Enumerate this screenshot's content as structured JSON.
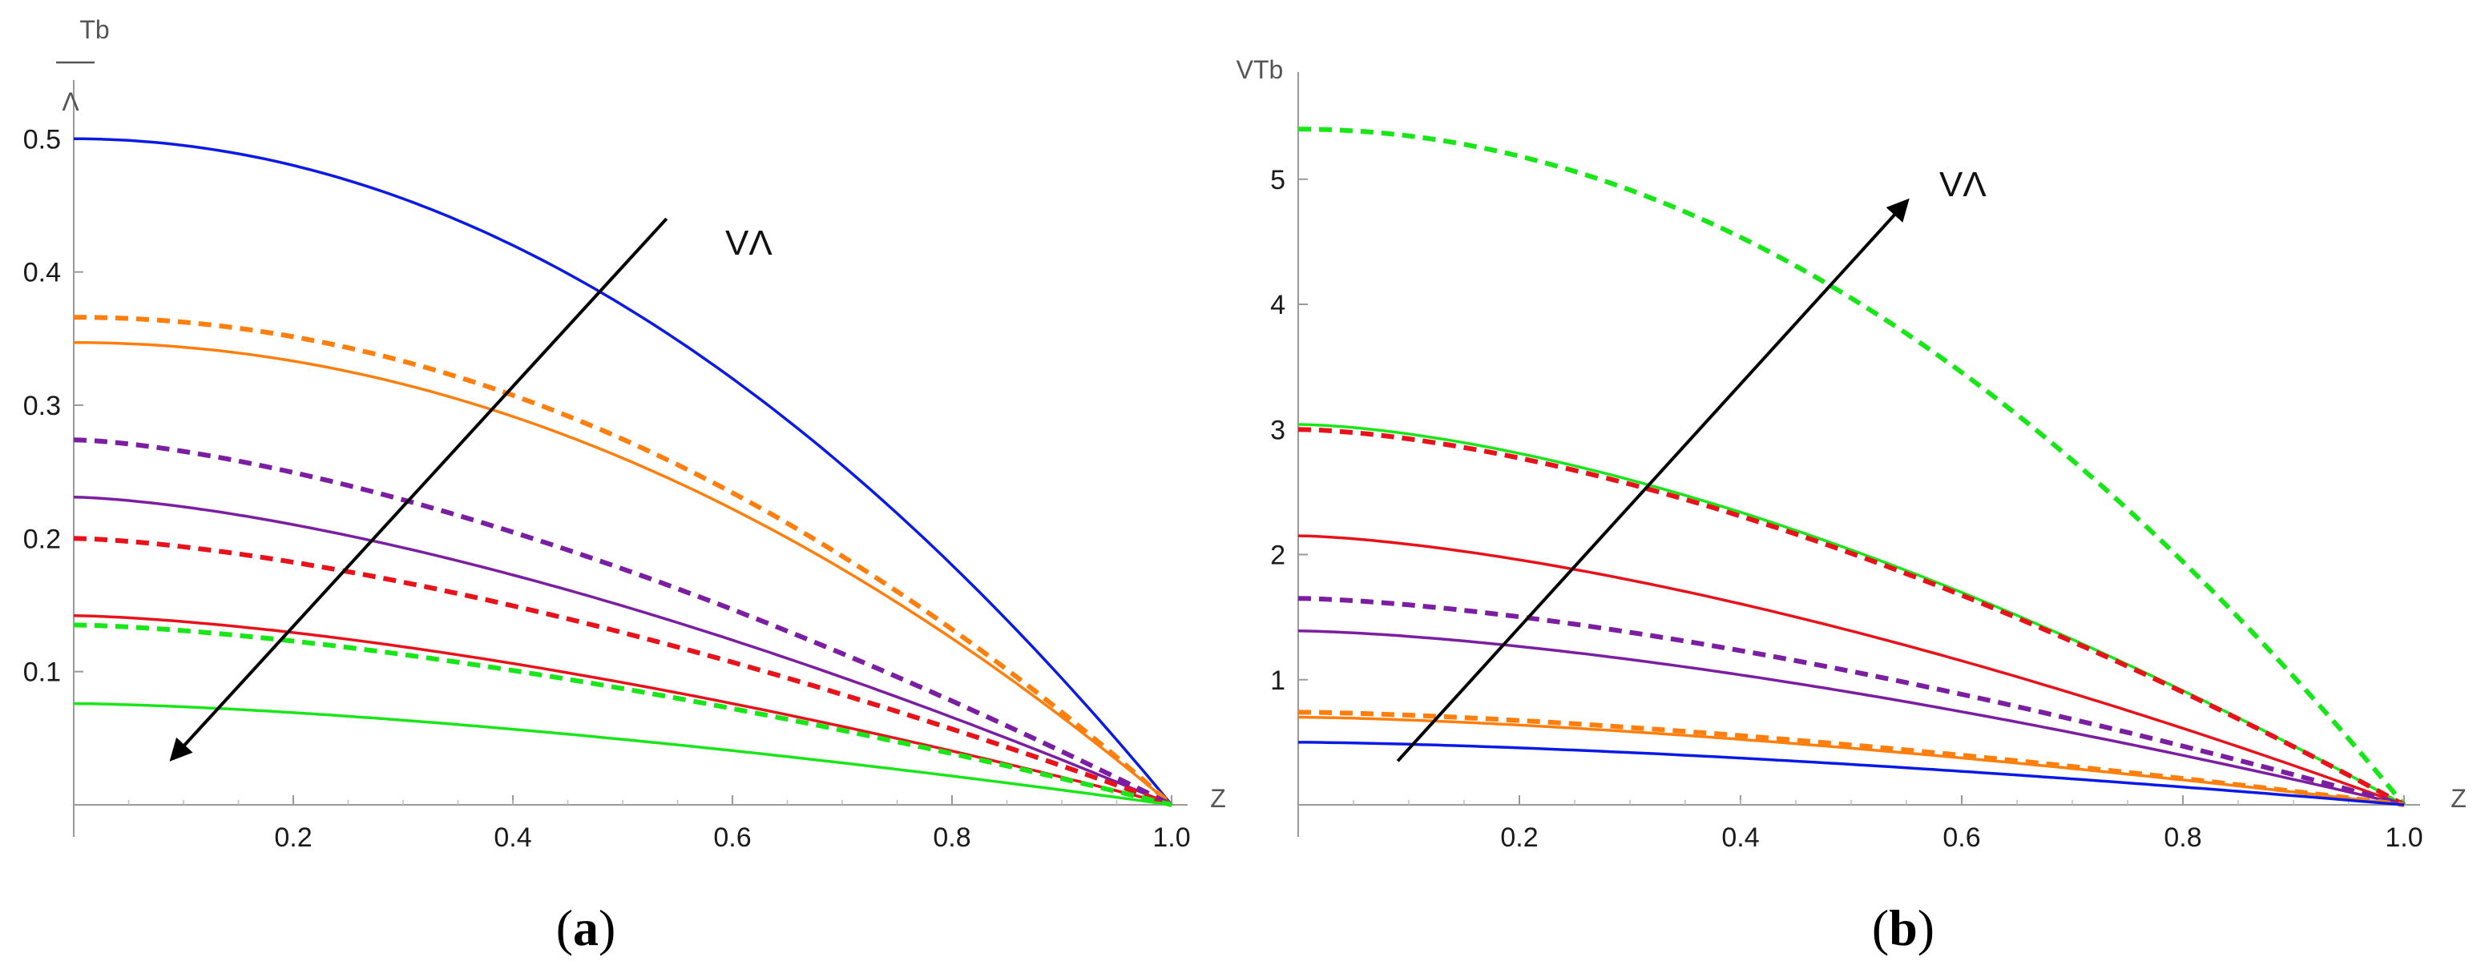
{
  "chart_data": [
    {
      "type": "line",
      "panel_label_open": "(",
      "panel_label_letter": "a",
      "panel_label_close": ")",
      "ylabel_top": "Tb",
      "ylabel_bottom": "Λ",
      "xlabel": "Z",
      "xlim": [
        0,
        1.0
      ],
      "ylim": [
        0,
        0.52
      ],
      "xticks": [
        0.2,
        0.4,
        0.6,
        0.8,
        1.0
      ],
      "xtick_labels": [
        "0.2",
        "0.4",
        "0.6",
        "0.8",
        "1.0"
      ],
      "yticks": [
        0.1,
        0.2,
        0.3,
        0.4,
        0.5
      ],
      "ytick_labels": [
        "0.1",
        "0.2",
        "0.3",
        "0.4",
        "0.5"
      ],
      "annotation": {
        "text": "VΛ",
        "direction": "decreasing",
        "from": [
          0.54,
          0.44
        ],
        "to": [
          0.09,
          0.035
        ]
      },
      "series": [
        {
          "name": "blue-solid",
          "color": "#0a1ae6",
          "dash": "solid",
          "y0": 0.5,
          "shape": 2.0
        },
        {
          "name": "orange-dashed",
          "color": "#ff7f0e",
          "dash": "dashed",
          "y0": 0.366,
          "shape": 2.0
        },
        {
          "name": "orange-solid",
          "color": "#ff7f0e",
          "dash": "solid",
          "y0": 0.347,
          "shape": 2.0
        },
        {
          "name": "purple-dashed",
          "color": "#7b1ea2",
          "dash": "dashed",
          "y0": 0.274,
          "shape": 1.5
        },
        {
          "name": "purple-solid",
          "color": "#7b1ea2",
          "dash": "solid",
          "y0": 0.231,
          "shape": 1.5
        },
        {
          "name": "red-dashed",
          "color": "#e8121b",
          "dash": "dashed",
          "y0": 0.2,
          "shape": 1.5
        },
        {
          "name": "red-solid",
          "color": "#e8121b",
          "dash": "solid",
          "y0": 0.142,
          "shape": 1.5
        },
        {
          "name": "green-dashed",
          "color": "#19e619",
          "dash": "dashed",
          "y0": 0.135,
          "shape": 1.5
        },
        {
          "name": "green-solid",
          "color": "#19e619",
          "dash": "solid",
          "y0": 0.076,
          "shape": 1.5
        }
      ]
    },
    {
      "type": "line",
      "panel_label_open": "(",
      "panel_label_letter": "b",
      "panel_label_close": ")",
      "ylabel_top": "VTb",
      "ylabel_bottom": "",
      "xlabel": "Z",
      "xlim": [
        0,
        1.0
      ],
      "ylim": [
        0,
        5.6
      ],
      "xticks": [
        0.2,
        0.4,
        0.6,
        0.8,
        1.0
      ],
      "xtick_labels": [
        "0.2",
        "0.4",
        "0.6",
        "0.8",
        "1.0"
      ],
      "yticks": [
        1,
        2,
        3,
        4,
        5
      ],
      "ytick_labels": [
        "1",
        "2",
        "3",
        "4",
        "5"
      ],
      "annotation": {
        "text": "VΛ",
        "direction": "increasing",
        "from": [
          0.09,
          0.35
        ],
        "to": [
          0.55,
          4.82
        ]
      },
      "series": [
        {
          "name": "green-dashed",
          "color": "#19e619",
          "dash": "dashed",
          "y0": 5.4,
          "shape": 2.0
        },
        {
          "name": "green-solid",
          "color": "#19e619",
          "dash": "solid",
          "y0": 3.04,
          "shape": 1.6
        },
        {
          "name": "red-dashed",
          "color": "#e8121b",
          "dash": "dashed",
          "y0": 3.0,
          "shape": 1.6
        },
        {
          "name": "red-solid",
          "color": "#e8121b",
          "dash": "solid",
          "y0": 2.15,
          "shape": 1.5
        },
        {
          "name": "purple-dashed",
          "color": "#7b1ea2",
          "dash": "dashed",
          "y0": 1.65,
          "shape": 1.5
        },
        {
          "name": "purple-solid",
          "color": "#7b1ea2",
          "dash": "solid",
          "y0": 1.39,
          "shape": 1.5
        },
        {
          "name": "orange-dashed",
          "color": "#ff7f0e",
          "dash": "dashed",
          "y0": 0.74,
          "shape": 1.5
        },
        {
          "name": "orange-solid",
          "color": "#ff7f0e",
          "dash": "solid",
          "y0": 0.7,
          "shape": 1.5
        },
        {
          "name": "blue-solid",
          "color": "#0a1ae6",
          "dash": "solid",
          "y0": 0.5,
          "shape": 1.5
        }
      ]
    }
  ]
}
